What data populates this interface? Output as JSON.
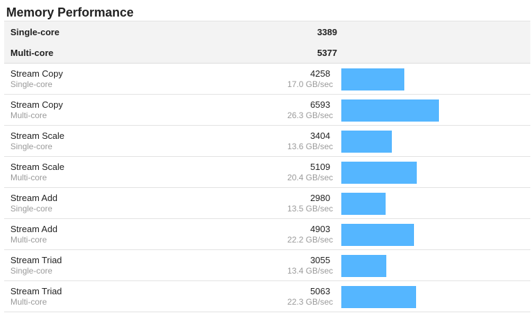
{
  "section": {
    "title": "Memory Performance"
  },
  "summary": [
    {
      "label": "Single-core",
      "score": "3389"
    },
    {
      "label": "Multi-core",
      "score": "5377"
    }
  ],
  "benchmarks": [
    {
      "name": "Stream Copy",
      "mode": "Single-core",
      "score": "4258",
      "rate": "17.0 GB/sec",
      "value": 4258
    },
    {
      "name": "Stream Copy",
      "mode": "Multi-core",
      "score": "6593",
      "rate": "26.3 GB/sec",
      "value": 6593
    },
    {
      "name": "Stream Scale",
      "mode": "Single-core",
      "score": "3404",
      "rate": "13.6 GB/sec",
      "value": 3404
    },
    {
      "name": "Stream Scale",
      "mode": "Multi-core",
      "score": "5109",
      "rate": "20.4 GB/sec",
      "value": 5109
    },
    {
      "name": "Stream Add",
      "mode": "Single-core",
      "score": "2980",
      "rate": "13.5 GB/sec",
      "value": 2980
    },
    {
      "name": "Stream Add",
      "mode": "Multi-core",
      "score": "4903",
      "rate": "22.2 GB/sec",
      "value": 4903
    },
    {
      "name": "Stream Triad",
      "mode": "Single-core",
      "score": "3055",
      "rate": "13.4 GB/sec",
      "value": 3055
    },
    {
      "name": "Stream Triad",
      "mode": "Multi-core",
      "score": "5063",
      "rate": "22.3 GB/sec",
      "value": 5063
    }
  ],
  "style": {
    "bar_color": "#55b6ff"
  }
}
